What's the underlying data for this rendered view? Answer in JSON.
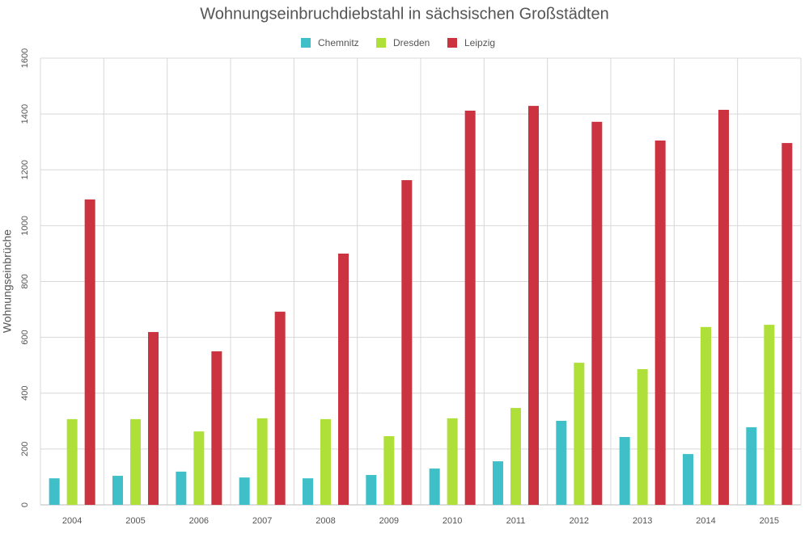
{
  "chart_data": {
    "type": "bar",
    "title": "Wohnungseinbruchdiebstahl in sächsischen Großstädten",
    "y_label": "Wohnungseinbrüche",
    "categories": [
      "2004",
      "2005",
      "2006",
      "2007",
      "2008",
      "2009",
      "2010",
      "2011",
      "2012",
      "2013",
      "2014",
      "2015"
    ],
    "series": [
      {
        "name": "Chemnitz",
        "color": "#3fc0c9",
        "values": [
          95,
          104,
          119,
          98,
          95,
          107,
          130,
          156,
          301,
          243,
          182,
          278
        ]
      },
      {
        "name": "Dresden",
        "color": "#afe03a",
        "values": [
          307,
          307,
          263,
          310,
          307,
          246,
          310,
          347,
          509,
          486,
          637,
          645
        ]
      },
      {
        "name": "Leipzig",
        "color": "#cb3340",
        "values": [
          1094,
          619,
          550,
          692,
          900,
          1163,
          1412,
          1429,
          1372,
          1305,
          1415,
          1296
        ]
      }
    ],
    "ylim": [
      0,
      1600
    ],
    "yticks": [
      0,
      200,
      400,
      600,
      800,
      1000,
      1200,
      1400,
      1600
    ],
    "grid": true,
    "legend": "top"
  }
}
